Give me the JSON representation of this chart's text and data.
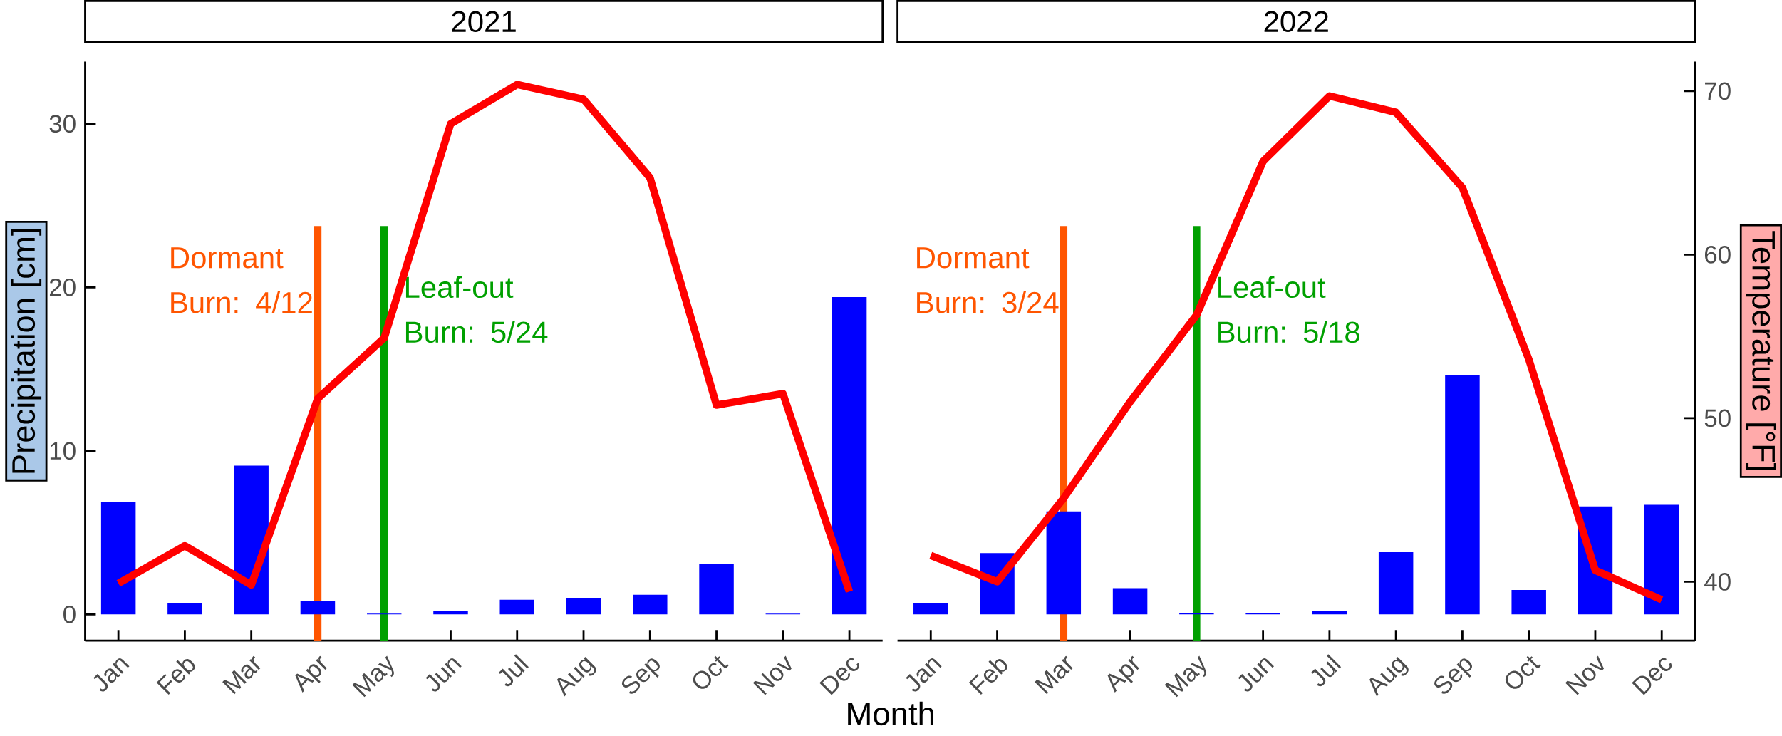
{
  "chart_data": [
    {
      "type": "bar",
      "title": "2021",
      "xlabel": "Month",
      "ylabel": "Precipitation [cm]",
      "categories": [
        "Jan",
        "Feb",
        "Mar",
        "Apr",
        "May",
        "Jun",
        "Jul",
        "Aug",
        "Sep",
        "Oct",
        "Nov",
        "Dec"
      ],
      "series": [
        {
          "color": "#0000ff",
          "values": [
            6.9,
            0.7,
            9.1,
            0.8,
            0.05,
            0.2,
            0.9,
            1.0,
            1.2,
            3.1,
            0.05,
            19.4
          ]
        },
        {
          "type": "line",
          "axis": "y2",
          "color": "#ff0000",
          "values": [
            39.9,
            42.2,
            39.8,
            51.2,
            54.9,
            68.0,
            70.4,
            69.5,
            64.7,
            50.8,
            51.5,
            39.4
          ]
        }
      ],
      "ylim": [
        -1.6,
        33.8
      ],
      "yticks": [
        0,
        10,
        20,
        30
      ],
      "y2lim": [
        36.4,
        71.8
      ],
      "tick_labels": [
        "x",
        "y"
      ],
      "ref_lines": [
        {
          "axis": "x",
          "value": "Apr",
          "label": "Dormant Burn: 4/12",
          "color": "#ff5500"
        },
        {
          "axis": "x",
          "value": "May",
          "label": "Leaf-out Burn: 5/24",
          "color": "#00a000"
        }
      ]
    },
    {
      "type": "bar",
      "title": "2022",
      "y2label": "Temperature [°F]",
      "categories": [
        "Jan",
        "Feb",
        "Mar",
        "Apr",
        "May",
        "Jun",
        "Jul",
        "Aug",
        "Sep",
        "Oct",
        "Nov",
        "Dec"
      ],
      "series": [
        {
          "color": "#0000ff",
          "values": [
            0.7,
            3.75,
            6.3,
            1.6,
            0.1,
            0.1,
            0.2,
            3.8,
            14.65,
            1.5,
            6.6,
            6.7
          ]
        },
        {
          "type": "line",
          "axis": "y2",
          "color": "#ff0000",
          "values": [
            41.6,
            40.0,
            45.1,
            51.0,
            56.3,
            65.7,
            69.7,
            68.7,
            64.1,
            53.6,
            40.7,
            38.9
          ]
        }
      ],
      "ylim": [
        -1.6,
        33.8
      ],
      "y2lim": [
        36.4,
        71.8
      ],
      "y2ticks": [
        40,
        50,
        60,
        70
      ],
      "tick_labels": [
        "x",
        "y2"
      ],
      "ref_lines": [
        {
          "axis": "x",
          "value": "Mar",
          "label": "Dormant Burn: 3/24",
          "color": "#ff5500"
        },
        {
          "axis": "x",
          "value": "May",
          "label": "Leaf-out Burn: 5/18",
          "color": "#00a000"
        }
      ]
    }
  ]
}
